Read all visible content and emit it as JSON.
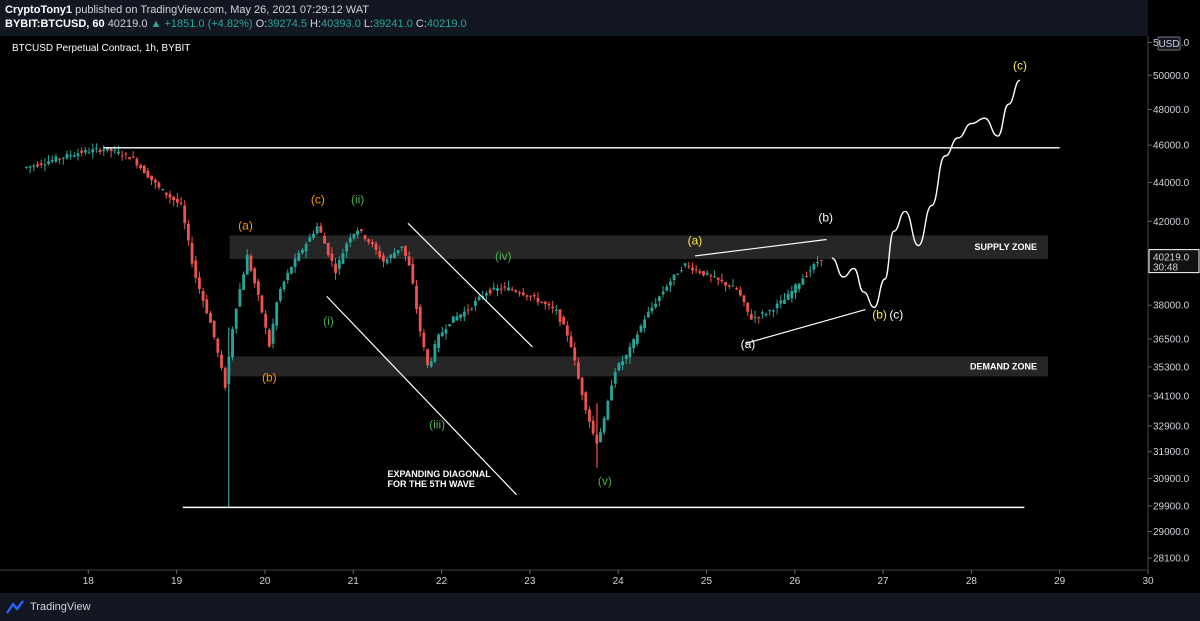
{
  "header": {
    "author": "CryptoTony1",
    "published_text": "published on TradingView.com, May 26, 2021 07:29:12 WAT",
    "symbol": "BYBIT:BTCUSD, 60",
    "last": "40219.0",
    "change": "▲ +1851.0 (+4.82%)",
    "o_label": "O:",
    "o_value": "39274.5",
    "h_label": "H:",
    "h_value": "40393.0",
    "l_label": "L:",
    "l_value": "39241.0",
    "c_label": "C:",
    "c_value": "40219.0"
  },
  "chart_title": "BTCUSD Perpetual Contract, 1h, BYBIT",
  "footer": {
    "brand": "TradingView"
  },
  "colors": {
    "background": "#000000",
    "panel": "#131722",
    "up": "#26a69a",
    "down": "#ef5350",
    "white_lines": "#ffffff",
    "zone": "#2a2a2a",
    "orange_label": "#ff9800",
    "green_label": "#4caf50",
    "yellow_label": "#ffeb3b"
  },
  "chart_data": {
    "type": "candlestick",
    "title": "BTCUSD Perpetual Contract, 1h, BYBIT",
    "x_ticks": [
      "18",
      "19",
      "20",
      "21",
      "22",
      "23",
      "24",
      "25",
      "26",
      "27",
      "28",
      "29",
      "30"
    ],
    "y_ticks": [
      "52000.0",
      "50000.0",
      "48000.0",
      "46000.0",
      "44000.0",
      "42000.0",
      "40219.0",
      "38000.0",
      "36500.0",
      "35300.0",
      "34100.0",
      "32900.0",
      "31900.0",
      "30900.0",
      "29900.0",
      "29000.0",
      "28100.0"
    ],
    "y_scale": "log",
    "ylim": [
      27700,
      52400
    ],
    "currency_label": "USD",
    "price_tag": {
      "price": "40219.0",
      "countdown": "30:48"
    },
    "path_points": [
      [
        17.3,
        44800
      ],
      [
        17.6,
        45200
      ],
      [
        17.9,
        45600
      ],
      [
        18.2,
        45800
      ],
      [
        18.5,
        45300
      ],
      [
        18.8,
        43700
      ],
      [
        19.05,
        42800
      ],
      [
        19.2,
        39500
      ],
      [
        19.4,
        37000
      ],
      [
        19.55,
        34500
      ],
      [
        19.65,
        37500
      ],
      [
        19.8,
        40300
      ],
      [
        19.95,
        38000
      ],
      [
        20.05,
        36200
      ],
      [
        20.15,
        38500
      ],
      [
        20.3,
        39800
      ],
      [
        20.45,
        40800
      ],
      [
        20.6,
        41800
      ],
      [
        20.7,
        40600
      ],
      [
        20.8,
        39600
      ],
      [
        20.95,
        41200
      ],
      [
        21.05,
        41600
      ],
      [
        21.2,
        40900
      ],
      [
        21.35,
        40000
      ],
      [
        21.55,
        40800
      ],
      [
        21.65,
        39600
      ],
      [
        21.75,
        37000
      ],
      [
        21.85,
        35200
      ],
      [
        21.95,
        36500
      ],
      [
        22.1,
        37300
      ],
      [
        22.3,
        37800
      ],
      [
        22.5,
        38600
      ],
      [
        22.7,
        38800
      ],
      [
        22.9,
        38600
      ],
      [
        23.1,
        38200
      ],
      [
        23.3,
        37700
      ],
      [
        23.45,
        36500
      ],
      [
        23.55,
        34800
      ],
      [
        23.65,
        33400
      ],
      [
        23.75,
        32200
      ],
      [
        23.85,
        33200
      ],
      [
        23.95,
        35100
      ],
      [
        24.1,
        35800
      ],
      [
        24.3,
        37400
      ],
      [
        24.55,
        38900
      ],
      [
        24.75,
        39900
      ],
      [
        24.95,
        39500
      ],
      [
        25.15,
        39100
      ],
      [
        25.35,
        38700
      ],
      [
        25.5,
        37400
      ],
      [
        25.7,
        37700
      ],
      [
        25.9,
        38300
      ],
      [
        26.1,
        39300
      ],
      [
        26.3,
        40219
      ]
    ],
    "projection_points": [
      [
        26.42,
        40200
      ],
      [
        26.55,
        39300
      ],
      [
        26.67,
        39700
      ],
      [
        26.78,
        38600
      ],
      [
        26.9,
        37900
      ],
      [
        27.02,
        39200
      ],
      [
        27.12,
        41500
      ],
      [
        27.25,
        42500
      ],
      [
        27.4,
        40800
      ],
      [
        27.55,
        42800
      ],
      [
        27.7,
        45400
      ],
      [
        27.85,
        46400
      ],
      [
        28.0,
        47200
      ],
      [
        28.15,
        47500
      ],
      [
        28.3,
        46500
      ],
      [
        28.42,
        48300
      ],
      [
        28.55,
        49700
      ]
    ],
    "zones": [
      {
        "name": "SUPPLY ZONE",
        "low": 40150,
        "high": 41300
      },
      {
        "name": "DEMAND ZONE",
        "low": 34900,
        "high": 35750
      }
    ],
    "horizontal_lines": [
      {
        "y": 45850,
        "x_from": 18.17,
        "x_to": 29.0
      },
      {
        "y": 29850,
        "x_from": 19.07,
        "x_to": 28.6
      }
    ],
    "trend_lines": [
      {
        "from": [
          21.62,
          41900
        ],
        "to": [
          23.03,
          36150
        ]
      },
      {
        "from": [
          20.7,
          38400
        ],
        "to": [
          22.85,
          30300
        ]
      },
      {
        "from": [
          24.87,
          40300
        ],
        "to": [
          26.36,
          41100
        ]
      },
      {
        "from": [
          25.44,
          36300
        ],
        "to": [
          26.8,
          37800
        ]
      }
    ],
    "annotations": [
      {
        "text": "(a)",
        "x": 19.78,
        "y": 41600,
        "color": "orange"
      },
      {
        "text": "(b)",
        "x": 20.05,
        "y": 34700,
        "color": "orange"
      },
      {
        "text": "(c)",
        "x": 20.6,
        "y": 42900,
        "color": "orange"
      },
      {
        "text": "(ii)",
        "x": 21.05,
        "y": 42900,
        "color": "green"
      },
      {
        "text": "(i)",
        "x": 20.72,
        "y": 37100,
        "color": "green"
      },
      {
        "text": "(iv)",
        "x": 22.7,
        "y": 40100,
        "color": "green"
      },
      {
        "text": "(iii)",
        "x": 21.95,
        "y": 32800,
        "color": "green"
      },
      {
        "text": "(v)",
        "x": 23.85,
        "y": 30650,
        "color": "green"
      },
      {
        "text": "(a)",
        "x": 24.87,
        "y": 40850,
        "color": "yellow"
      },
      {
        "text": "(b)",
        "x": 26.35,
        "y": 42000,
        "color": "white"
      },
      {
        "text": "(a)",
        "x": 25.47,
        "y": 36100,
        "color": "white"
      },
      {
        "text": "(b)",
        "x": 26.96,
        "y": 37400,
        "color": "yellow"
      },
      {
        "text": "(c)",
        "x": 27.15,
        "y": 37400,
        "color": "white"
      },
      {
        "text": "(c)",
        "x": 28.55,
        "y": 50350,
        "color": "yellow"
      }
    ],
    "text_notes": [
      {
        "lines": [
          "EXPANDING DIAGONAL",
          "FOR THE 5TH WAVE"
        ],
        "x": 21.15,
        "y": 30950
      }
    ]
  }
}
